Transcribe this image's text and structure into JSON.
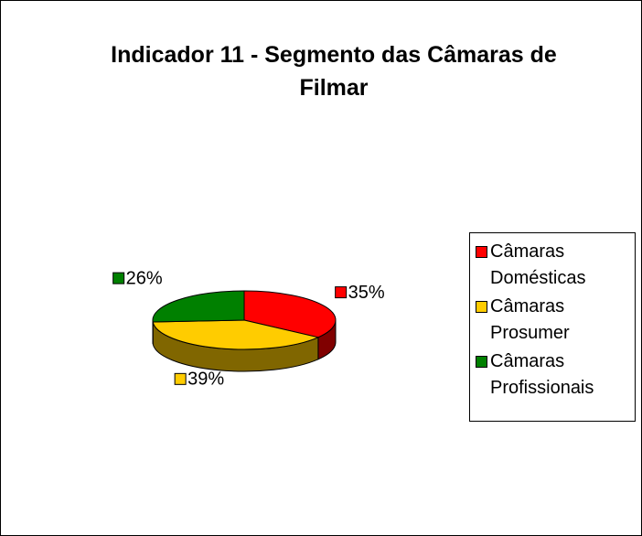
{
  "chart_data": {
    "type": "pie",
    "title": "Indicador 11 - Segmento das Câmaras de Filmar",
    "categories": [
      "Câmaras Domésticas",
      "Câmaras Prosumer",
      "Câmaras Profissionais"
    ],
    "values": [
      35,
      39,
      26
    ],
    "value_labels": [
      "35%",
      "39%",
      "26%"
    ],
    "colors": [
      "#ff0000",
      "#ffcc00",
      "#008000"
    ],
    "legend": "right"
  }
}
